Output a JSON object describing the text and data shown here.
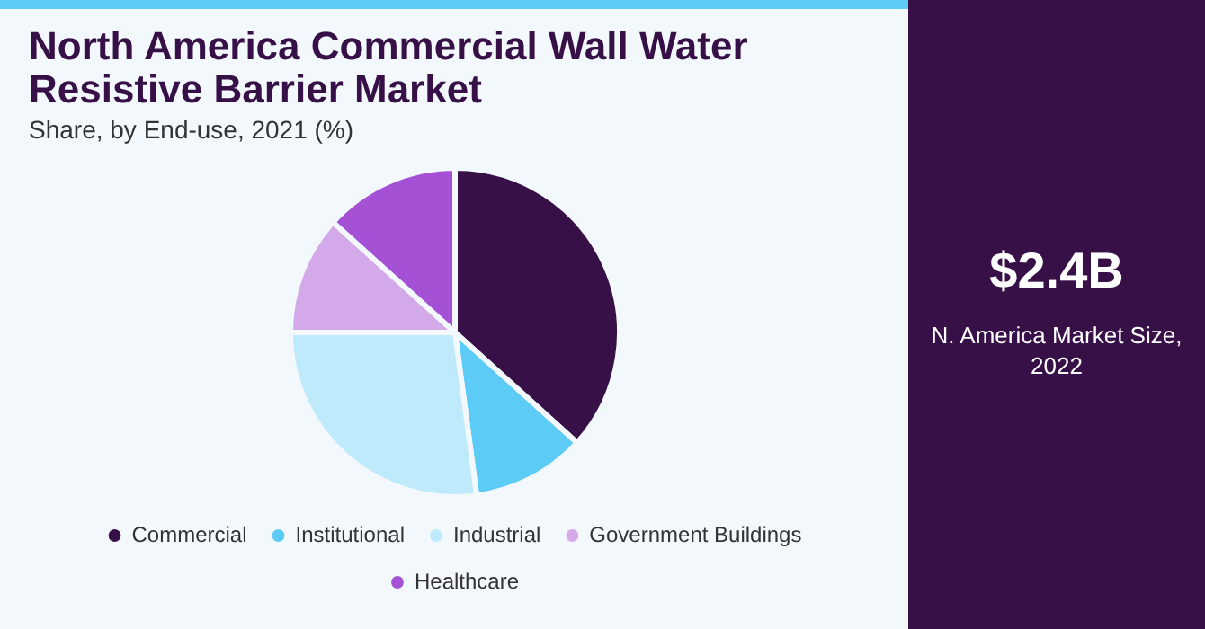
{
  "chart_data": {
    "type": "pie",
    "title": "North America Commercial Wall Water Resistive Barrier Market",
    "subtitle": "Share, by End-use, 2021 (%)",
    "categories": [
      "Commercial",
      "Institutional",
      "Industrial",
      "Government Buildings",
      "Healthcare"
    ],
    "values": [
      36.7,
      11.2,
      27.1,
      11.7,
      13.3
    ],
    "colors": [
      "#361046",
      "#5ccbf5",
      "#bfeafb",
      "#d4a9ea",
      "#a551d6"
    ],
    "legend": "bottom",
    "annotations": [
      "$2.4B",
      "N. America Market Size, 2022"
    ]
  }
}
